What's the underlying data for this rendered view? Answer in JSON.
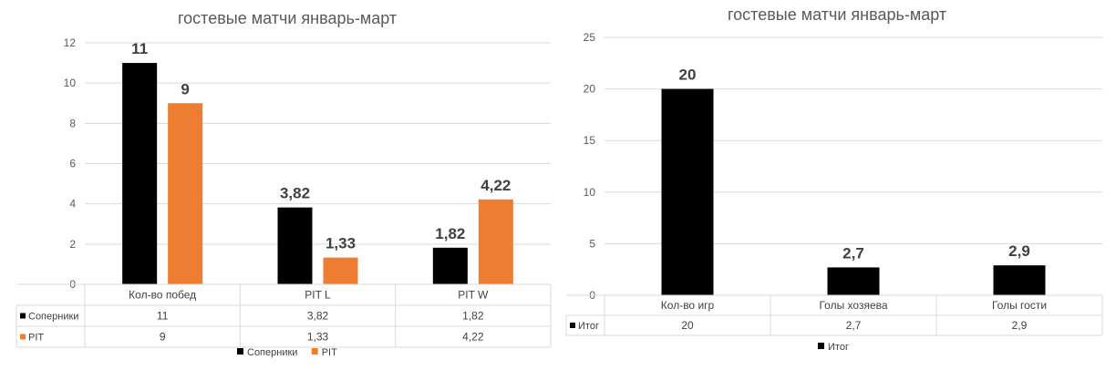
{
  "chart_data": [
    {
      "type": "bar",
      "title": "гостевые матчи январь-март",
      "categories": [
        "Кол-во побед",
        "PIT L",
        "PIT W"
      ],
      "series": [
        {
          "name": "Соперники",
          "values": [
            11,
            3.82,
            1.82
          ],
          "labels": [
            "11",
            "3,82",
            "1,82"
          ],
          "color": "#000000"
        },
        {
          "name": "PIT",
          "values": [
            9,
            1.33,
            4.22
          ],
          "labels": [
            "9",
            "1,33",
            "4,22"
          ],
          "color": "#ED7D31"
        }
      ],
      "yticks": [
        "0",
        "2",
        "4",
        "6",
        "8",
        "10",
        "12"
      ],
      "ylim": [
        0,
        12
      ],
      "grid": true,
      "legend": "bottom",
      "data_table": true
    },
    {
      "type": "bar",
      "title": "гостевые матчи январь-март",
      "categories": [
        "Кол-во игр",
        "Голы хозяева",
        "Голы гости"
      ],
      "series": [
        {
          "name": "Итог",
          "values": [
            20,
            2.7,
            2.9
          ],
          "labels": [
            "20",
            "2,7",
            "2,9"
          ],
          "color": "#000000"
        }
      ],
      "yticks": [
        "0",
        "5",
        "10",
        "15",
        "20",
        "25"
      ],
      "ylim": [
        0,
        25
      ],
      "grid": true,
      "legend": "bottom",
      "data_table": true
    }
  ]
}
